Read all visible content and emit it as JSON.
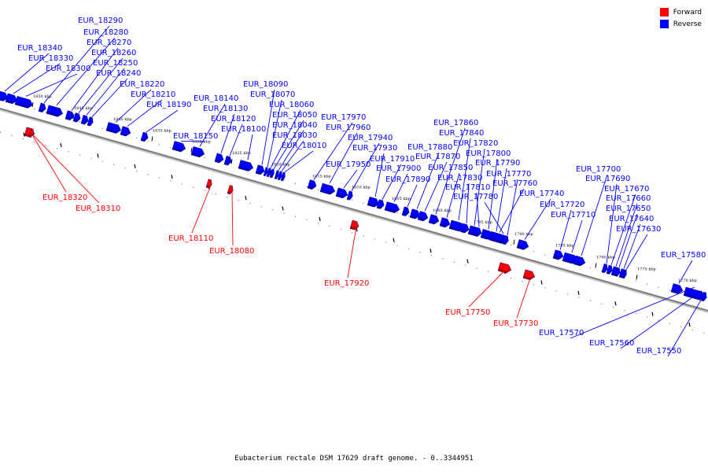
{
  "legend": {
    "forward": {
      "label": "Forward",
      "color": "#ff0000"
    },
    "reverse": {
      "label": "Reverse",
      "color": "#0000ff"
    }
  },
  "caption": "Eubacterium rectale DSM 17629 draft genome. - 0..3344951",
  "ticks": [
    "1850 kbp",
    "1845 kbp",
    "1840 kbp",
    "1835 kbp",
    "1830 kbp",
    "1825 kbp",
    "1820 kbp",
    "1815 kbp",
    "1810 kbp",
    "1805 kbp",
    "1800 kbp",
    "1795 kbp",
    "1790 kbp",
    "1785 kbp",
    "1780 kbp",
    "1775 kbp",
    "1770 kbp"
  ],
  "reverse_genes": [
    "EUR_18340",
    "EUR_18330",
    "EUR_18300",
    "EUR_18290",
    "EUR_18280",
    "EUR_18270",
    "EUR_18260",
    "EUR_18250",
    "EUR_18240",
    "EUR_18220",
    "EUR_18210",
    "EUR_18190",
    "EUR_18150",
    "EUR_18140",
    "EUR_18130",
    "EUR_18120",
    "EUR_18100",
    "EUR_18090",
    "EUR_18070",
    "EUR_18060",
    "EUR_18050",
    "EUR_18040",
    "EUR_18030",
    "EUR_18010",
    "EUR_17970",
    "EUR_17960",
    "EUR_17950",
    "EUR_17940",
    "EUR_17930",
    "EUR_17910",
    "EUR_17900",
    "EUR_17890",
    "EUR_17880",
    "EUR_17870",
    "EUR_17860",
    "EUR_17850",
    "EUR_17840",
    "EUR_17830",
    "EUR_17820",
    "EUR_17810",
    "EUR_17800",
    "EUR_17790",
    "EUR_17780",
    "EUR_17770",
    "EUR_17760",
    "EUR_17740",
    "EUR_17720",
    "EUR_17710",
    "EUR_17700",
    "EUR_17690",
    "EUR_17670",
    "EUR_17660",
    "EUR_17650",
    "EUR_17640",
    "EUR_17630",
    "EUR_17580",
    "EUR_17570",
    "EUR_17560",
    "EUR_17550"
  ],
  "forward_genes": [
    "EUR_18320",
    "EUR_18310",
    "EUR_18110",
    "EUR_18080",
    "EUR_17920",
    "EUR_17750",
    "EUR_17730"
  ]
}
